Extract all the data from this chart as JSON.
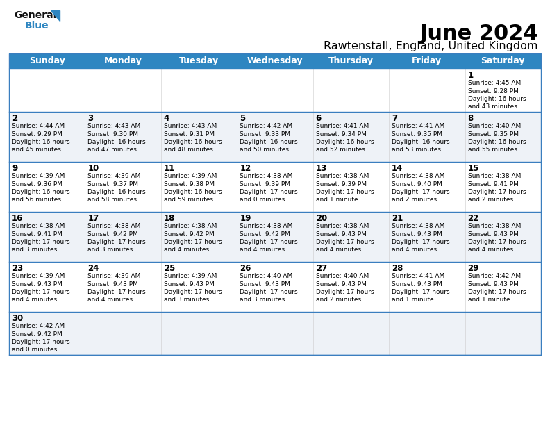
{
  "title": "June 2024",
  "subtitle": "Rawtenstall, England, United Kingdom",
  "header_bg": "#2E86C1",
  "header_text_color": "#FFFFFF",
  "weekdays": [
    "Sunday",
    "Monday",
    "Tuesday",
    "Wednesday",
    "Thursday",
    "Friday",
    "Saturday"
  ],
  "bg_color": "#FFFFFF",
  "divider_color": "#3a7ebf",
  "text_color": "#000000",
  "row_bg": [
    "#FFFFFF",
    "#EEF2F7",
    "#FFFFFF",
    "#EEF2F7",
    "#FFFFFF",
    "#EEF2F7"
  ],
  "calendar": [
    [
      {
        "day": "",
        "sunrise": "",
        "sunset": "",
        "daylight_h": "",
        "daylight_m": ""
      },
      {
        "day": "",
        "sunrise": "",
        "sunset": "",
        "daylight_h": "",
        "daylight_m": ""
      },
      {
        "day": "",
        "sunrise": "",
        "sunset": "",
        "daylight_h": "",
        "daylight_m": ""
      },
      {
        "day": "",
        "sunrise": "",
        "sunset": "",
        "daylight_h": "",
        "daylight_m": ""
      },
      {
        "day": "",
        "sunrise": "",
        "sunset": "",
        "daylight_h": "",
        "daylight_m": ""
      },
      {
        "day": "",
        "sunrise": "",
        "sunset": "",
        "daylight_h": "",
        "daylight_m": ""
      },
      {
        "day": "1",
        "sunrise": "4:45 AM",
        "sunset": "9:28 PM",
        "daylight_h": "16",
        "daylight_m": "43"
      }
    ],
    [
      {
        "day": "2",
        "sunrise": "4:44 AM",
        "sunset": "9:29 PM",
        "daylight_h": "16",
        "daylight_m": "45"
      },
      {
        "day": "3",
        "sunrise": "4:43 AM",
        "sunset": "9:30 PM",
        "daylight_h": "16",
        "daylight_m": "47"
      },
      {
        "day": "4",
        "sunrise": "4:43 AM",
        "sunset": "9:31 PM",
        "daylight_h": "16",
        "daylight_m": "48"
      },
      {
        "day": "5",
        "sunrise": "4:42 AM",
        "sunset": "9:33 PM",
        "daylight_h": "16",
        "daylight_m": "50"
      },
      {
        "day": "6",
        "sunrise": "4:41 AM",
        "sunset": "9:34 PM",
        "daylight_h": "16",
        "daylight_m": "52"
      },
      {
        "day": "7",
        "sunrise": "4:41 AM",
        "sunset": "9:35 PM",
        "daylight_h": "16",
        "daylight_m": "53"
      },
      {
        "day": "8",
        "sunrise": "4:40 AM",
        "sunset": "9:35 PM",
        "daylight_h": "16",
        "daylight_m": "55"
      }
    ],
    [
      {
        "day": "9",
        "sunrise": "4:39 AM",
        "sunset": "9:36 PM",
        "daylight_h": "16",
        "daylight_m": "56"
      },
      {
        "day": "10",
        "sunrise": "4:39 AM",
        "sunset": "9:37 PM",
        "daylight_h": "16",
        "daylight_m": "58"
      },
      {
        "day": "11",
        "sunrise": "4:39 AM",
        "sunset": "9:38 PM",
        "daylight_h": "16",
        "daylight_m": "59"
      },
      {
        "day": "12",
        "sunrise": "4:38 AM",
        "sunset": "9:39 PM",
        "daylight_h": "17",
        "daylight_m": "0"
      },
      {
        "day": "13",
        "sunrise": "4:38 AM",
        "sunset": "9:39 PM",
        "daylight_h": "17",
        "daylight_m": "1"
      },
      {
        "day": "14",
        "sunrise": "4:38 AM",
        "sunset": "9:40 PM",
        "daylight_h": "17",
        "daylight_m": "2"
      },
      {
        "day": "15",
        "sunrise": "4:38 AM",
        "sunset": "9:41 PM",
        "daylight_h": "17",
        "daylight_m": "2"
      }
    ],
    [
      {
        "day": "16",
        "sunrise": "4:38 AM",
        "sunset": "9:41 PM",
        "daylight_h": "17",
        "daylight_m": "3"
      },
      {
        "day": "17",
        "sunrise": "4:38 AM",
        "sunset": "9:42 PM",
        "daylight_h": "17",
        "daylight_m": "3"
      },
      {
        "day": "18",
        "sunrise": "4:38 AM",
        "sunset": "9:42 PM",
        "daylight_h": "17",
        "daylight_m": "4"
      },
      {
        "day": "19",
        "sunrise": "4:38 AM",
        "sunset": "9:42 PM",
        "daylight_h": "17",
        "daylight_m": "4"
      },
      {
        "day": "20",
        "sunrise": "4:38 AM",
        "sunset": "9:43 PM",
        "daylight_h": "17",
        "daylight_m": "4"
      },
      {
        "day": "21",
        "sunrise": "4:38 AM",
        "sunset": "9:43 PM",
        "daylight_h": "17",
        "daylight_m": "4"
      },
      {
        "day": "22",
        "sunrise": "4:38 AM",
        "sunset": "9:43 PM",
        "daylight_h": "17",
        "daylight_m": "4"
      }
    ],
    [
      {
        "day": "23",
        "sunrise": "4:39 AM",
        "sunset": "9:43 PM",
        "daylight_h": "17",
        "daylight_m": "4"
      },
      {
        "day": "24",
        "sunrise": "4:39 AM",
        "sunset": "9:43 PM",
        "daylight_h": "17",
        "daylight_m": "4"
      },
      {
        "day": "25",
        "sunrise": "4:39 AM",
        "sunset": "9:43 PM",
        "daylight_h": "17",
        "daylight_m": "3"
      },
      {
        "day": "26",
        "sunrise": "4:40 AM",
        "sunset": "9:43 PM",
        "daylight_h": "17",
        "daylight_m": "3"
      },
      {
        "day": "27",
        "sunrise": "4:40 AM",
        "sunset": "9:43 PM",
        "daylight_h": "17",
        "daylight_m": "2"
      },
      {
        "day": "28",
        "sunrise": "4:41 AM",
        "sunset": "9:43 PM",
        "daylight_h": "17",
        "daylight_m": "1"
      },
      {
        "day": "29",
        "sunrise": "4:42 AM",
        "sunset": "9:43 PM",
        "daylight_h": "17",
        "daylight_m": "1"
      }
    ],
    [
      {
        "day": "30",
        "sunrise": "4:42 AM",
        "sunset": "9:42 PM",
        "daylight_h": "17",
        "daylight_m": "0"
      },
      {
        "day": "",
        "sunrise": "",
        "sunset": "",
        "daylight_h": "",
        "daylight_m": ""
      },
      {
        "day": "",
        "sunrise": "",
        "sunset": "",
        "daylight_h": "",
        "daylight_m": ""
      },
      {
        "day": "",
        "sunrise": "",
        "sunset": "",
        "daylight_h": "",
        "daylight_m": ""
      },
      {
        "day": "",
        "sunrise": "",
        "sunset": "",
        "daylight_h": "",
        "daylight_m": ""
      },
      {
        "day": "",
        "sunrise": "",
        "sunset": "",
        "daylight_h": "",
        "daylight_m": ""
      },
      {
        "day": "",
        "sunrise": "",
        "sunset": "",
        "daylight_h": "",
        "daylight_m": ""
      }
    ]
  ]
}
